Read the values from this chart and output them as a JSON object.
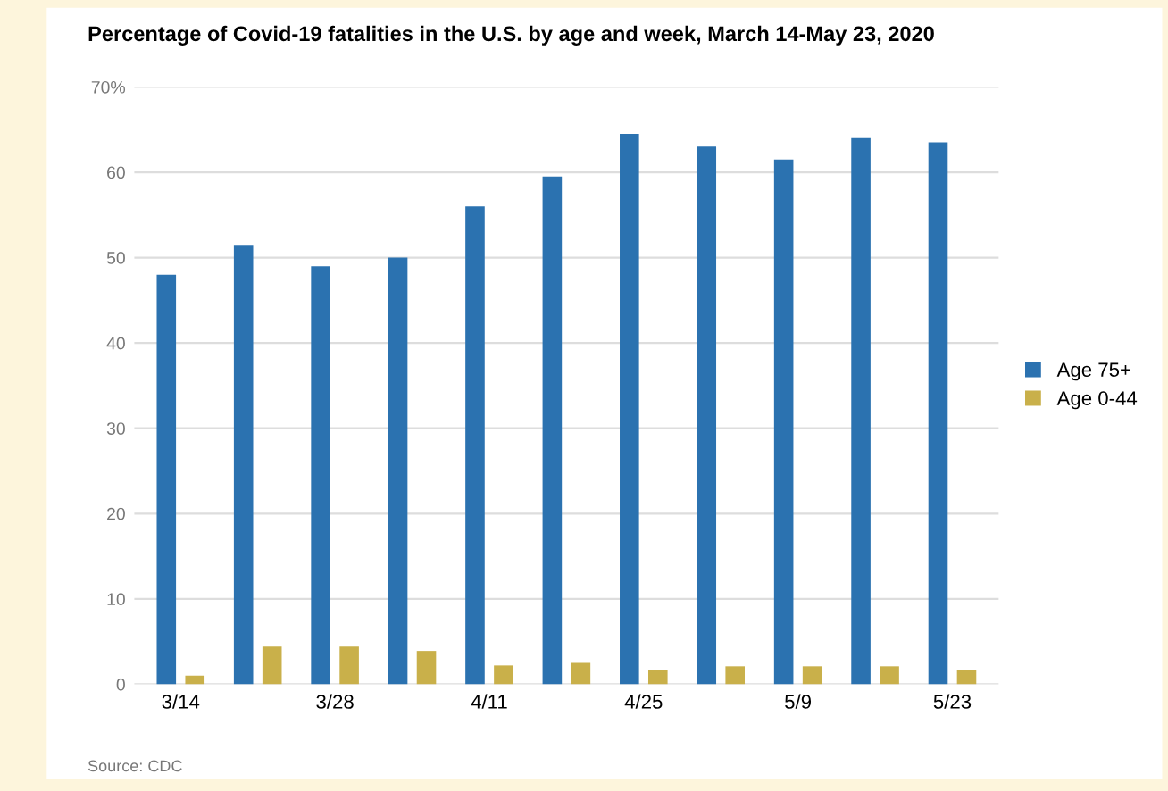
{
  "chart_data": {
    "type": "bar",
    "title": "Percentage of Covid-19 fatalities in the U.S. by age and week, March 14-May 23, 2020",
    "categories": [
      "3/14",
      null,
      "3/28",
      null,
      "4/11",
      null,
      "4/25",
      null,
      "5/9",
      null,
      "5/23"
    ],
    "series": [
      {
        "name": "Age 75+",
        "color": "#2b72b0",
        "values": [
          48,
          51.5,
          49,
          50,
          56,
          59.5,
          64.5,
          63,
          61.5,
          64,
          63.5
        ]
      },
      {
        "name": "Age 0-44",
        "color": "#c9b04a",
        "values": [
          1,
          4.4,
          4.4,
          3.9,
          2.2,
          2.5,
          1.7,
          2.1,
          2.1,
          2.1,
          1.7
        ]
      }
    ],
    "ylim": [
      0,
      70
    ],
    "yticks": [
      0,
      10,
      20,
      30,
      40,
      50,
      60,
      {
        "value": 70,
        "label": "70%"
      }
    ],
    "grid": "y",
    "legend": "right",
    "annotations": [
      "Source: CDC"
    ]
  }
}
